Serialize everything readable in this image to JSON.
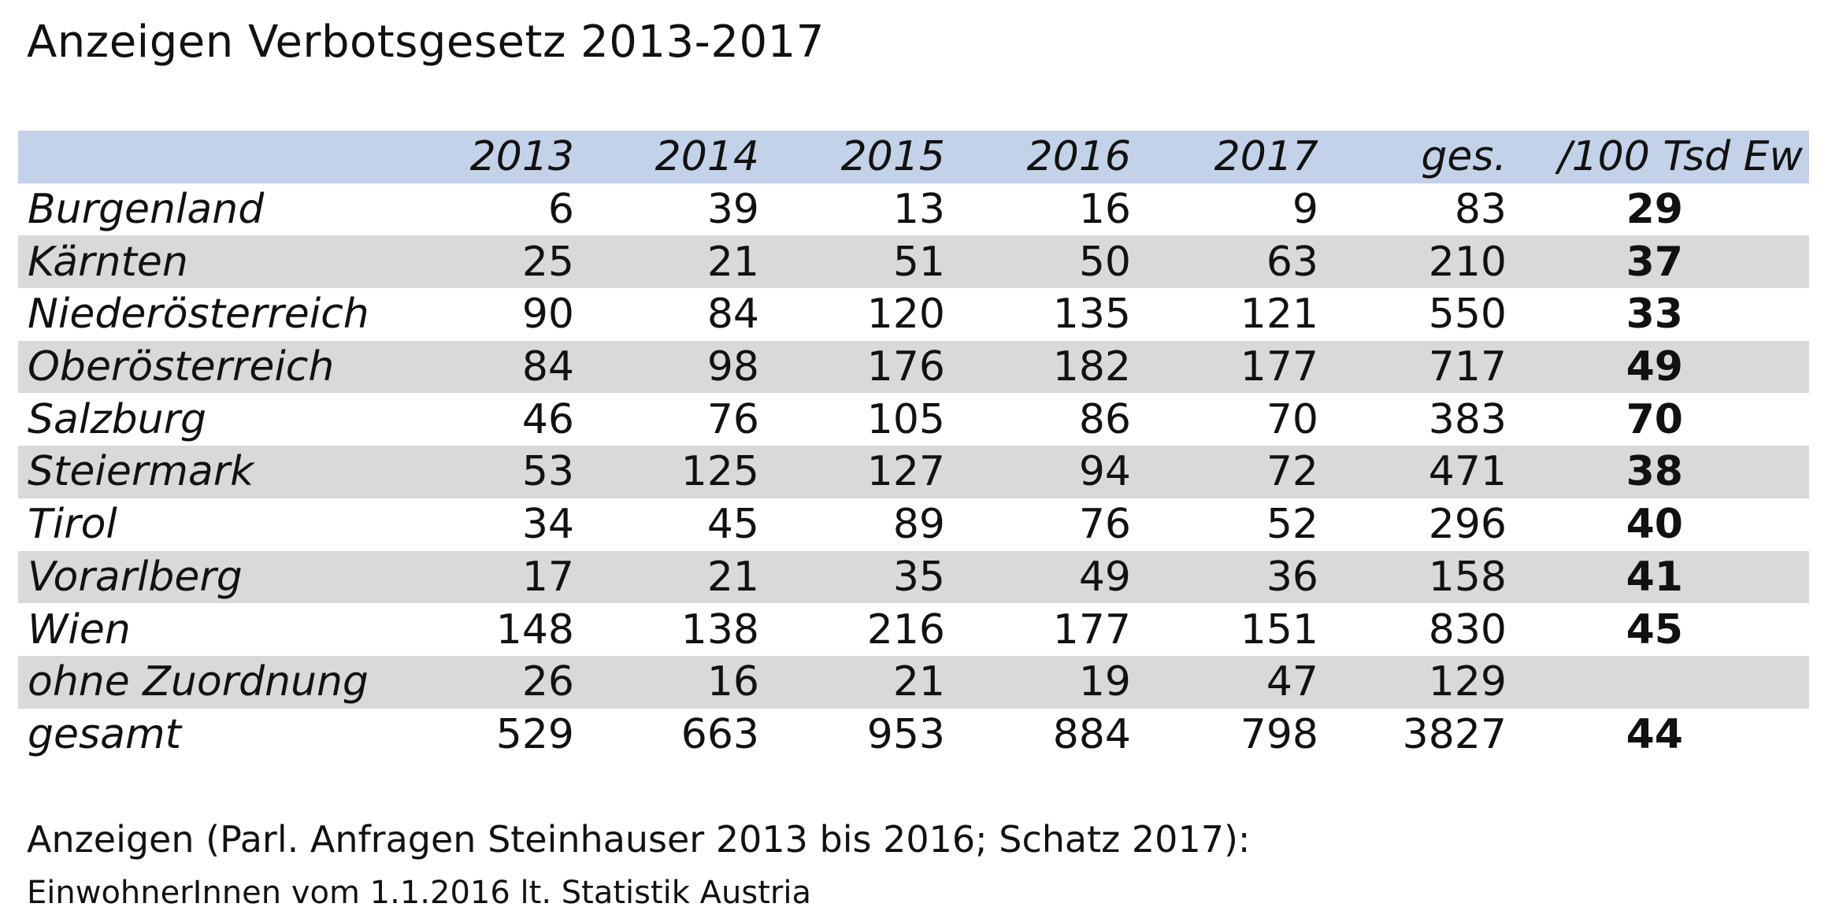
{
  "title": "Anzeigen Verbotsgesetz 2013-2017",
  "colors": {
    "header_bg": "#c3d2e8",
    "stripe_bg": "#d9d9d9",
    "text": "#111111"
  },
  "chart_data": {
    "type": "table",
    "title": "Anzeigen Verbotsgesetz 2013-2017",
    "columns": [
      "",
      "2013",
      "2014",
      "2015",
      "2016",
      "2017",
      "ges.",
      "/100 Tsd Ew"
    ],
    "rows": [
      {
        "name": "Burgenland",
        "values": [
          "6",
          "39",
          "13",
          "16",
          "9",
          "83"
        ],
        "per": "29"
      },
      {
        "name": "Kärnten",
        "values": [
          "25",
          "21",
          "51",
          "50",
          "63",
          "210"
        ],
        "per": "37"
      },
      {
        "name": "Niederösterreich",
        "values": [
          "90",
          "84",
          "120",
          "135",
          "121",
          "550"
        ],
        "per": "33"
      },
      {
        "name": "Oberösterreich",
        "values": [
          "84",
          "98",
          "176",
          "182",
          "177",
          "717"
        ],
        "per": "49"
      },
      {
        "name": "Salzburg",
        "values": [
          "46",
          "76",
          "105",
          "86",
          "70",
          "383"
        ],
        "per": "70"
      },
      {
        "name": "Steiermark",
        "values": [
          "53",
          "125",
          "127",
          "94",
          "72",
          "471"
        ],
        "per": "38"
      },
      {
        "name": "Tirol",
        "values": [
          "34",
          "45",
          "89",
          "76",
          "52",
          "296"
        ],
        "per": "40"
      },
      {
        "name": "Vorarlberg",
        "values": [
          "17",
          "21",
          "35",
          "49",
          "36",
          "158"
        ],
        "per": "41"
      },
      {
        "name": "Wien",
        "values": [
          "148",
          "138",
          "216",
          "177",
          "151",
          "830"
        ],
        "per": "45"
      },
      {
        "name": "ohne Zuordnung",
        "values": [
          "26",
          "16",
          "21",
          "19",
          "47",
          "129"
        ],
        "per": ""
      },
      {
        "name": "gesamt",
        "values": [
          "529",
          "663",
          "953",
          "884",
          "798",
          "3827"
        ],
        "per": "44"
      }
    ]
  },
  "notes": [
    "Anzeigen (Parl. Anfragen Steinhauser 2013 bis 2016; Schatz 2017):",
    "EinwohnerInnen vom 1.1.2016 lt. Statistik Austria"
  ]
}
